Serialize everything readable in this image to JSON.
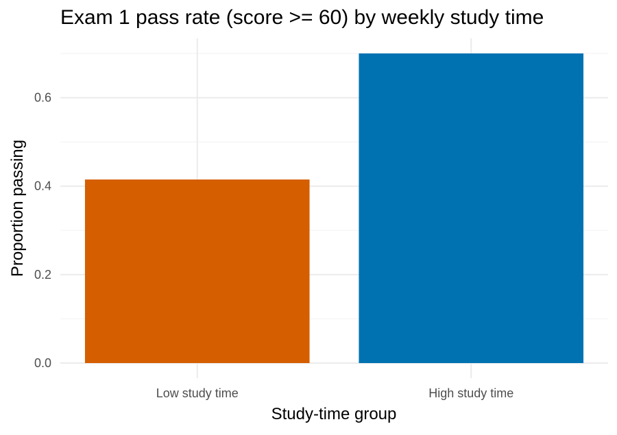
{
  "chart_data": {
    "type": "bar",
    "title": "Exam 1 pass rate (score >= 60) by weekly study time",
    "xlabel": "Study-time group",
    "ylabel": "Proportion passing",
    "categories": [
      "Low study time",
      "High study time"
    ],
    "values": [
      0.415,
      0.7
    ],
    "colors": [
      "#D55E00",
      "#0072B2"
    ],
    "ylim": [
      0,
      0.7
    ],
    "yticks": [
      0.0,
      0.2,
      0.4,
      0.6
    ],
    "ytick_labels": [
      "0.0",
      "0.2",
      "0.4",
      "0.6"
    ],
    "grid": true,
    "legend": "none"
  }
}
